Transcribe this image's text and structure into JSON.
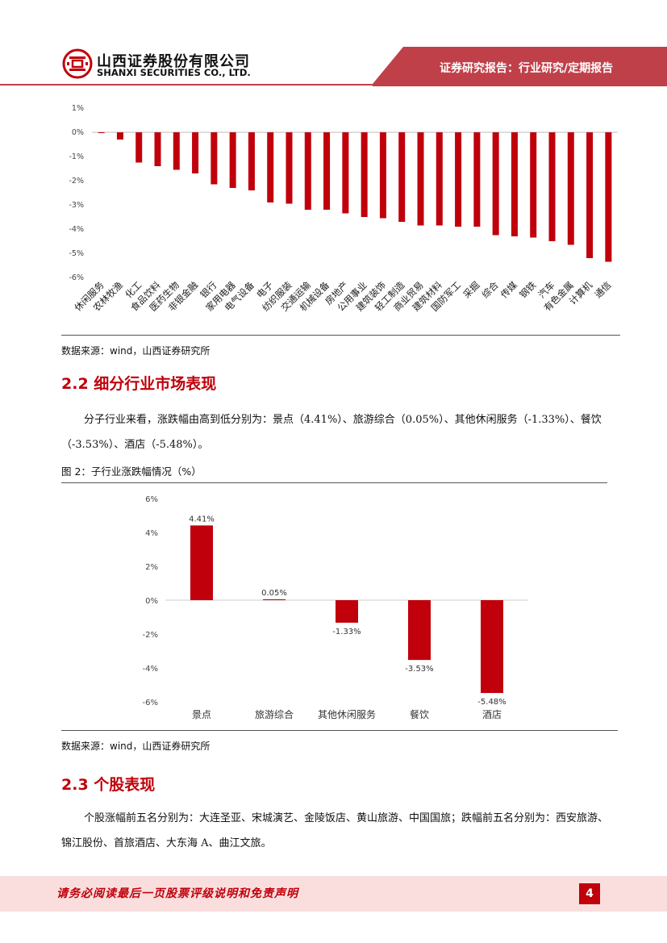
{
  "header": {
    "company_cn": "山西证券股份有限公司",
    "company_en": "SHANXI SECURITIES CO., LTD.",
    "report_type": "证券研究报告：行业研究/定期报告",
    "colors": {
      "brand_red": "#c0000b",
      "band": "#c0404a"
    }
  },
  "chart1": {
    "source": "数据来源：wind，山西证券研究所"
  },
  "section_2_2": {
    "heading": "2.2 细分行业市场表现",
    "paragraph": "分子行业来看，涨跌幅由高到低分别为：景点（4.41%）、旅游综合（0.05%）、其他休闲服务（-1.33%）、餐饮（-3.53%）、酒店（-5.48%）。",
    "figure_caption": "图 2：子行业涨跌幅情况（%）",
    "source": "数据来源：wind，山西证券研究所"
  },
  "section_2_3": {
    "heading": "2.3 个股表现",
    "paragraph": "个股涨幅前五名分别为：大连圣亚、宋城演艺、金陵饭店、黄山旅游、中国国旅；跌幅前五名分别为：西安旅游、锦江股份、首旅酒店、大东海 A、曲江文旅。"
  },
  "footer": {
    "disclaimer": "请务必阅读最后一页股票评级说明和免责声明",
    "page_number": "4"
  },
  "chart_data": [
    {
      "type": "bar",
      "title": "",
      "categories": [
        "休闲服务",
        "农林牧渔",
        "化工",
        "食品饮料",
        "医药生物",
        "非银金融",
        "银行",
        "家用电器",
        "电气设备",
        "电子",
        "纺织服装",
        "交通运输",
        "机械设备",
        "房地产",
        "公用事业",
        "建筑装饰",
        "轻工制造",
        "商业贸易",
        "建筑材料",
        "国防军工",
        "采掘",
        "综合",
        "传媒",
        "钢铁",
        "汽车",
        "有色金属",
        "计算机",
        "通信"
      ],
      "values": [
        -0.03,
        -0.3,
        -1.25,
        -1.4,
        -1.55,
        -1.7,
        -2.15,
        -2.3,
        -2.4,
        -2.9,
        -2.95,
        -3.2,
        -3.2,
        -3.35,
        -3.5,
        -3.55,
        -3.7,
        -3.85,
        -3.85,
        -3.9,
        -3.9,
        -4.25,
        -4.3,
        -4.35,
        -4.5,
        -4.65,
        -5.2,
        -5.35
      ],
      "yticks": [
        "1%",
        "0%",
        "-1%",
        "-2%",
        "-3%",
        "-4%",
        "-5%",
        "-6%"
      ],
      "ylim": [
        -6,
        1
      ],
      "xlabel": "",
      "ylabel": "",
      "bar_color": "#c0000b",
      "grid": false
    },
    {
      "type": "bar",
      "title": "",
      "categories": [
        "景点",
        "旅游综合",
        "其他休闲服务",
        "餐饮",
        "酒店"
      ],
      "values": [
        4.41,
        0.05,
        -1.33,
        -3.53,
        -5.48
      ],
      "data_labels": [
        "4.41%",
        "0.05%",
        "-1.33%",
        "-3.53%",
        "-5.48%"
      ],
      "yticks": [
        "6%",
        "4%",
        "2%",
        "0%",
        "-2%",
        "-4%",
        "-6%"
      ],
      "ylim": [
        -6,
        6
      ],
      "xlabel": "",
      "ylabel": "",
      "bar_color": "#c0000b",
      "grid": false
    }
  ]
}
